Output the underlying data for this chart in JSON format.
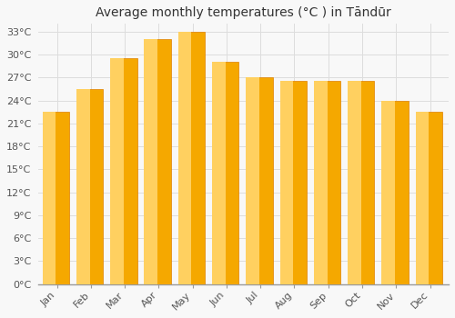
{
  "title": "Average monthly temperatures (°C ) in Tāndūr",
  "months": [
    "Jan",
    "Feb",
    "Mar",
    "Apr",
    "May",
    "Jun",
    "Jul",
    "Aug",
    "Sep",
    "Oct",
    "Nov",
    "Dec"
  ],
  "values": [
    22.5,
    25.5,
    29.5,
    32.0,
    33.0,
    29.0,
    27.0,
    26.5,
    26.5,
    26.5,
    24.0,
    22.5
  ],
  "bar_color_main": "#F5A800",
  "bar_color_light": "#FFD060",
  "bar_color_dark": "#E08000",
  "background_color": "#F8F8F8",
  "grid_color": "#DDDDDD",
  "ylim": [
    0,
    34
  ],
  "ytick_step": 3,
  "ylabel_suffix": "°C",
  "title_fontsize": 10,
  "tick_fontsize": 8,
  "bar_width": 0.72
}
